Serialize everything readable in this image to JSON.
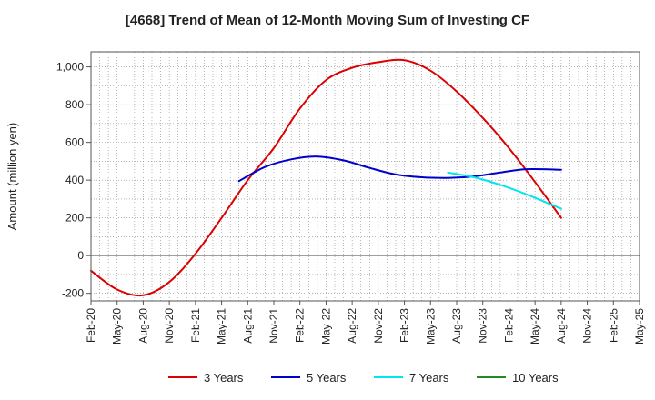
{
  "chart_data": {
    "type": "line",
    "title": "[4668]  Trend of Mean of 12-Month Moving Sum of Investing CF",
    "xlabel": "",
    "ylabel": "Amount (million yen)",
    "ylim": [
      -240,
      1080
    ],
    "yticks": [
      -200,
      0,
      200,
      400,
      600,
      800,
      1000
    ],
    "ytick_labels": [
      "-200",
      "0",
      "200",
      "400",
      "600",
      "800",
      "1,000"
    ],
    "x_start": "Feb-20",
    "x_end": "May-25",
    "xtick_labels": [
      "Feb-20",
      "May-20",
      "Aug-20",
      "Nov-20",
      "Feb-21",
      "May-21",
      "Aug-21",
      "Nov-21",
      "Feb-22",
      "May-22",
      "Aug-22",
      "Nov-22",
      "Feb-23",
      "May-23",
      "Aug-23",
      "Nov-23",
      "Feb-24",
      "May-24",
      "Aug-24",
      "Nov-24",
      "Feb-25",
      "May-25"
    ],
    "grid": true,
    "legend_position": "bottom",
    "series": [
      {
        "name": "3 Years",
        "color": "#dd0000",
        "points": [
          {
            "x": "Feb-20",
            "y": -80
          },
          {
            "x": "May-20",
            "y": -180
          },
          {
            "x": "Aug-20",
            "y": -210
          },
          {
            "x": "Nov-20",
            "y": -140
          },
          {
            "x": "Feb-21",
            "y": 10
          },
          {
            "x": "May-21",
            "y": 200
          },
          {
            "x": "Aug-21",
            "y": 400
          },
          {
            "x": "Nov-21",
            "y": 570
          },
          {
            "x": "Feb-22",
            "y": 780
          },
          {
            "x": "May-22",
            "y": 930
          },
          {
            "x": "Aug-22",
            "y": 995
          },
          {
            "x": "Nov-22",
            "y": 1025
          },
          {
            "x": "Feb-23",
            "y": 1035
          },
          {
            "x": "May-23",
            "y": 980
          },
          {
            "x": "Aug-23",
            "y": 870
          },
          {
            "x": "Nov-23",
            "y": 730
          },
          {
            "x": "Feb-24",
            "y": 570
          },
          {
            "x": "May-24",
            "y": 390
          },
          {
            "x": "Aug-24",
            "y": 200
          }
        ]
      },
      {
        "name": "5 Years",
        "color": "#0000cc",
        "points": [
          {
            "x": "Jul-21",
            "y": 395
          },
          {
            "x": "Oct-21",
            "y": 470
          },
          {
            "x": "Jan-22",
            "y": 510
          },
          {
            "x": "Apr-22",
            "y": 525
          },
          {
            "x": "Jul-22",
            "y": 505
          },
          {
            "x": "Oct-22",
            "y": 465
          },
          {
            "x": "Jan-23",
            "y": 430
          },
          {
            "x": "Apr-23",
            "y": 415
          },
          {
            "x": "Jul-23",
            "y": 412
          },
          {
            "x": "Oct-23",
            "y": 420
          },
          {
            "x": "Jan-24",
            "y": 440
          },
          {
            "x": "Apr-24",
            "y": 458
          },
          {
            "x": "Aug-24",
            "y": 455
          }
        ]
      },
      {
        "name": "7 Years",
        "color": "#00e5ee",
        "points": [
          {
            "x": "Jul-23",
            "y": 440
          },
          {
            "x": "Oct-23",
            "y": 415
          },
          {
            "x": "Jan-24",
            "y": 375
          },
          {
            "x": "Apr-24",
            "y": 325
          },
          {
            "x": "Aug-24",
            "y": 248
          }
        ]
      },
      {
        "name": "10 Years",
        "color": "#228b22",
        "points": []
      }
    ]
  }
}
